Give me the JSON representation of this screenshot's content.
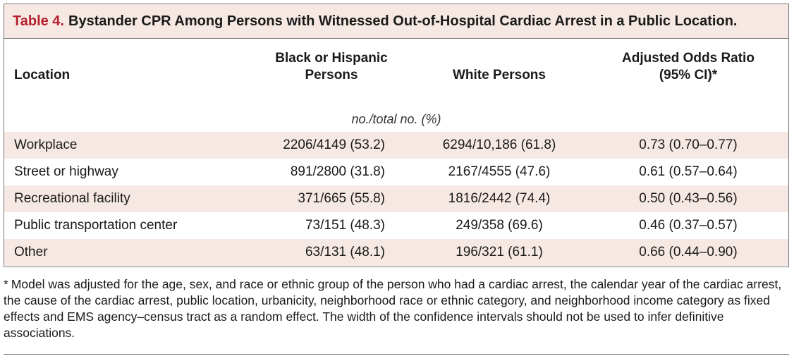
{
  "table": {
    "label": "Table 4.",
    "title": "Bystander CPR Among Persons with Witnessed Out-of-Hospital Cardiac Arrest in a Public Location.",
    "headers": {
      "location": "Location",
      "black_hispanic_line1": "Black or Hispanic",
      "black_hispanic_line2": "Persons",
      "white": "White Persons",
      "odds_line1": "Adjusted Odds Ratio",
      "odds_line2": "(95% CI)*"
    },
    "units": "no./total no. (%)",
    "rows": [
      {
        "location": "Workplace",
        "black_hispanic": "2206/4149 (53.2)",
        "white": "6294/10,186 (61.8)",
        "odds_ratio": "0.73 (0.70–0.77)"
      },
      {
        "location": "Street or highway",
        "black_hispanic": "891/2800 (31.8)",
        "white": "2167/4555 (47.6)",
        "odds_ratio": "0.61 (0.57–0.64)"
      },
      {
        "location": "Recreational facility",
        "black_hispanic": "371/665 (55.8)",
        "white": "1816/2442 (74.4)",
        "odds_ratio": "0.50 (0.43–0.56)"
      },
      {
        "location": "Public transportation center",
        "black_hispanic": "73/151 (48.3)",
        "white": "249/358 (69.6)",
        "odds_ratio": "0.46 (0.37–0.57)"
      },
      {
        "location": "Other",
        "black_hispanic": "63/131 (48.1)",
        "white": "196/321 (61.1)",
        "odds_ratio": "0.66 (0.44–0.90)"
      }
    ]
  },
  "footnote": {
    "mark": "*",
    "text": "Model was adjusted for the age, sex, and race or ethnic group of the person who had a cardiac arrest, the calendar year of the cardiac arrest, the cause of the cardiac arrest, public location, urbanicity, neighborhood race or ethnic category, and neighborhood income category as fixed effects and EMS agency–census tract as a random effect. The width of the confidence intervals should not be used to infer definitive associations."
  },
  "colors": {
    "accent": "#b51f2d",
    "shade": "#f6e9e4",
    "rule": "#7a7a7a"
  }
}
